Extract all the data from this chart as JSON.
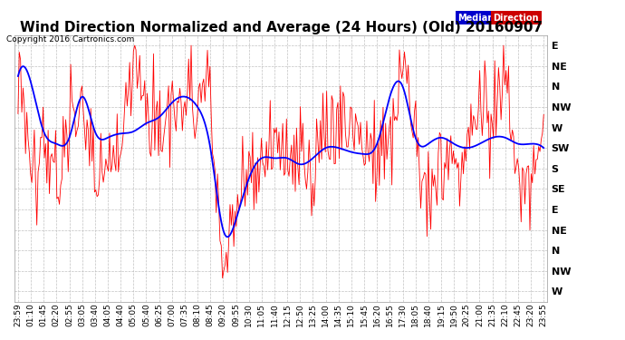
{
  "title": "Wind Direction Normalized and Average (24 Hours) (Old) 20160907",
  "copyright": "Copyright 2016 Cartronics.com",
  "ytick_labels": [
    "E",
    "NE",
    "N",
    "NW",
    "W",
    "SW",
    "S",
    "SE",
    "E",
    "NE",
    "N",
    "NW",
    "W"
  ],
  "xtick_labels": [
    "23:59",
    "01:10",
    "01:45",
    "02:20",
    "02:55",
    "03:05",
    "03:40",
    "04:05",
    "04:40",
    "05:05",
    "05:40",
    "06:25",
    "07:00",
    "07:35",
    "08:10",
    "08:45",
    "09:20",
    "09:55",
    "10:30",
    "11:05",
    "11:40",
    "12:15",
    "12:50",
    "13:25",
    "14:00",
    "14:35",
    "15:10",
    "15:45",
    "16:20",
    "16:55",
    "17:30",
    "18:05",
    "18:40",
    "19:15",
    "19:50",
    "20:25",
    "21:00",
    "21:35",
    "22:10",
    "22:45",
    "23:20",
    "23:55"
  ],
  "ylim": [
    -0.5,
    12.5
  ],
  "background_color": "#ffffff",
  "grid_color": "#bbbbbb",
  "title_fontsize": 11,
  "xlabel_fontsize": 6.5,
  "ylabel_fontsize": 8,
  "red_color": "#ff0000",
  "blue_color": "#0000ff",
  "median_legend_bg": "#0000cc",
  "direction_legend_bg": "#cc0000"
}
